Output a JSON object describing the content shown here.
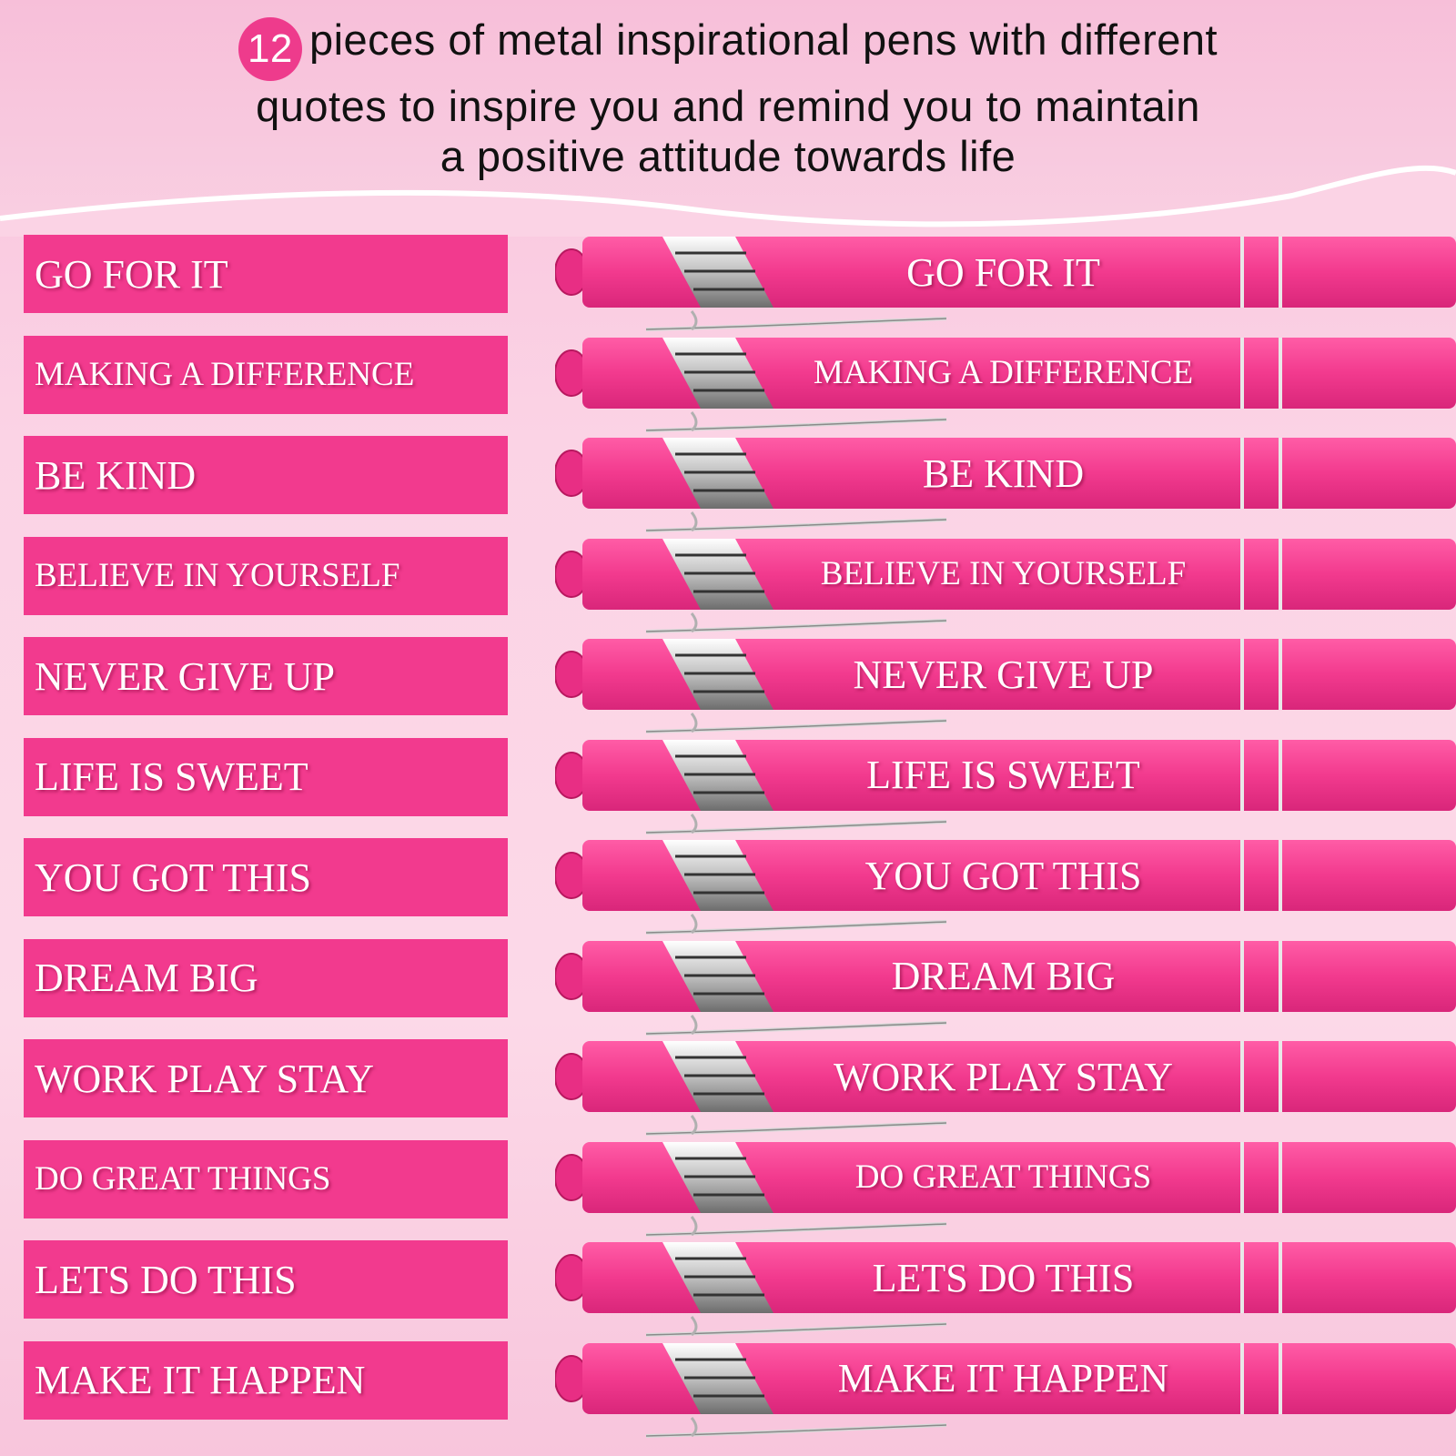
{
  "header": {
    "count": "12",
    "line1": "pieces of metal inspirational pens with different",
    "line2": "quotes to inspire you and remind you to maintain",
    "line3": "a positive attitude towards life"
  },
  "colors": {
    "accent": "#f23a8e",
    "badge": "#ee3b8c",
    "background": "#fbd3e5"
  },
  "quotes": [
    "GO FOR IT",
    "MAKING A DIFFERENCE",
    "BE KIND",
    "BELIEVE IN YOURSELF",
    "NEVER GIVE UP",
    "LIFE IS SWEET",
    "YOU GOT THIS",
    "DREAM BIG",
    "WORK PLAY STAY",
    "DO GREAT THINGS",
    "LETS DO THIS",
    "MAKE IT HAPPEN"
  ]
}
